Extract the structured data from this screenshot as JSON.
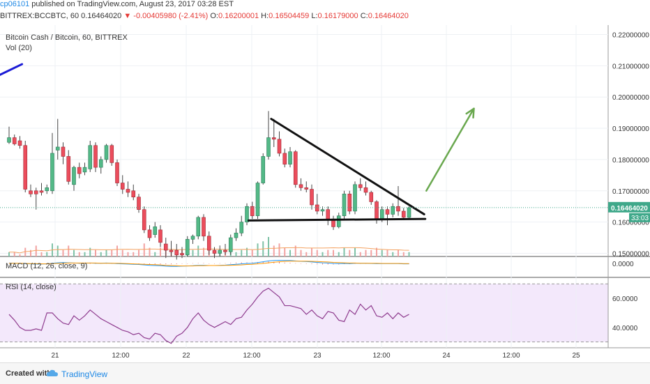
{
  "header": {
    "user": "cp06101",
    "published_text": " published on TradingView.com, August 23, 2017 03:28 EST",
    "symbol": "BITTREX:BCCBTC, 60",
    "price": "0.16464020",
    "change_arrow": "▼",
    "change": "-0.00405980 (-2.41%)",
    "open_label": "O:",
    "open": "0.16200001",
    "high_label": "H:",
    "high": "0.16504459",
    "low_label": "L:",
    "low": "0.16179000",
    "close_label": "C:",
    "close": "0.16464020"
  },
  "chart_data": {
    "type": "candlestick",
    "title": "Bitcoin Cash / Bitcoin, 60, BITTREX",
    "volume_label": "Vol (20)",
    "macd_label": "MACD (12, 26, close, 9)",
    "rsi_label": "RSI (14, close)",
    "price_axis_ticks": [
      "0.22000000",
      "0.21000000",
      "0.20000000",
      "0.19000000",
      "0.18000000",
      "0.17000000",
      "0.16000000",
      "0.15000000"
    ],
    "price_range": [
      0.149,
      0.223
    ],
    "last_price_label": "0.16464020",
    "countdown_label": "33:03",
    "last_price": 0.16464,
    "macd_tick": "0.0000",
    "rsi_ticks": [
      "60.0000",
      "40.0000"
    ],
    "rsi_range": [
      26,
      74
    ],
    "rsi_bands": [
      70,
      30
    ],
    "x_ticks": [
      "21",
      "12:00",
      "22",
      "12:00",
      "23",
      "12:00",
      "24",
      "12:00",
      "25"
    ],
    "bar_spacing": 7.75,
    "candles": [
      [
        0.1855,
        0.1905,
        0.185,
        0.187
      ],
      [
        0.187,
        0.188,
        0.1845,
        0.185
      ],
      [
        0.186,
        0.1875,
        0.1835,
        0.1845
      ],
      [
        0.1845,
        0.186,
        0.1695,
        0.1705
      ],
      [
        0.17,
        0.172,
        0.168,
        0.169
      ],
      [
        0.17,
        0.171,
        0.164,
        0.169
      ],
      [
        0.17,
        0.1725,
        0.1685,
        0.1695
      ],
      [
        0.17,
        0.172,
        0.169,
        0.171
      ],
      [
        0.17,
        0.1885,
        0.169,
        0.182
      ],
      [
        0.183,
        0.193,
        0.18,
        0.184
      ],
      [
        0.184,
        0.1855,
        0.1785,
        0.181
      ],
      [
        0.181,
        0.183,
        0.172,
        0.173
      ],
      [
        0.172,
        0.178,
        0.17,
        0.1775
      ],
      [
        0.1775,
        0.179,
        0.174,
        0.1755
      ],
      [
        0.176,
        0.179,
        0.175,
        0.1775
      ],
      [
        0.177,
        0.186,
        0.176,
        0.1845
      ],
      [
        0.1845,
        0.1855,
        0.176,
        0.1775
      ],
      [
        0.1775,
        0.181,
        0.1755,
        0.18
      ],
      [
        0.18,
        0.185,
        0.179,
        0.1845
      ],
      [
        0.1845,
        0.185,
        0.178,
        0.179
      ],
      [
        0.179,
        0.18,
        0.1715,
        0.1725
      ],
      [
        0.1725,
        0.175,
        0.169,
        0.1705
      ],
      [
        0.1705,
        0.173,
        0.168,
        0.1695
      ],
      [
        0.17,
        0.172,
        0.167,
        0.168
      ],
      [
        0.168,
        0.169,
        0.163,
        0.164
      ],
      [
        0.164,
        0.165,
        0.1565,
        0.1575
      ],
      [
        0.1575,
        0.159,
        0.154,
        0.155
      ],
      [
        0.156,
        0.16,
        0.155,
        0.1585
      ],
      [
        0.1575,
        0.159,
        0.152,
        0.1535
      ],
      [
        0.153,
        0.155,
        0.1485,
        0.151
      ],
      [
        0.151,
        0.154,
        0.149,
        0.1505
      ],
      [
        0.151,
        0.153,
        0.148,
        0.1495
      ],
      [
        0.15,
        0.152,
        0.1485,
        0.1495
      ],
      [
        0.1495,
        0.1555,
        0.149,
        0.1545
      ],
      [
        0.1545,
        0.156,
        0.153,
        0.1555
      ],
      [
        0.1555,
        0.162,
        0.1545,
        0.1615
      ],
      [
        0.1615,
        0.1625,
        0.154,
        0.1555
      ],
      [
        0.1555,
        0.157,
        0.1495,
        0.151
      ],
      [
        0.151,
        0.152,
        0.1485,
        0.15
      ],
      [
        0.15,
        0.1525,
        0.149,
        0.151
      ],
      [
        0.151,
        0.153,
        0.1495,
        0.1505
      ],
      [
        0.1505,
        0.156,
        0.1495,
        0.155
      ],
      [
        0.155,
        0.158,
        0.154,
        0.1565
      ],
      [
        0.1565,
        0.162,
        0.1555,
        0.16
      ],
      [
        0.16,
        0.166,
        0.159,
        0.165
      ],
      [
        0.165,
        0.1665,
        0.161,
        0.162
      ],
      [
        0.162,
        0.173,
        0.161,
        0.1725
      ],
      [
        0.1725,
        0.182,
        0.172,
        0.181
      ],
      [
        0.181,
        0.1955,
        0.18,
        0.187
      ],
      [
        0.187,
        0.193,
        0.184,
        0.1865
      ],
      [
        0.1865,
        0.189,
        0.181,
        0.182
      ],
      [
        0.182,
        0.1835,
        0.1775,
        0.1785
      ],
      [
        0.1785,
        0.184,
        0.1775,
        0.1825
      ],
      [
        0.1825,
        0.183,
        0.171,
        0.172
      ],
      [
        0.172,
        0.174,
        0.17,
        0.171
      ],
      [
        0.171,
        0.173,
        0.1695,
        0.1705
      ],
      [
        0.1705,
        0.172,
        0.164,
        0.1655
      ],
      [
        0.1655,
        0.169,
        0.1625,
        0.1635
      ],
      [
        0.1635,
        0.165,
        0.162,
        0.164
      ],
      [
        0.164,
        0.165,
        0.159,
        0.161
      ],
      [
        0.161,
        0.162,
        0.1575,
        0.1585
      ],
      [
        0.1585,
        0.163,
        0.158,
        0.162
      ],
      [
        0.162,
        0.17,
        0.161,
        0.169
      ],
      [
        0.169,
        0.17,
        0.1625,
        0.1635
      ],
      [
        0.1635,
        0.173,
        0.1625,
        0.172
      ],
      [
        0.172,
        0.174,
        0.17,
        0.171
      ],
      [
        0.171,
        0.173,
        0.1685,
        0.1695
      ],
      [
        0.1695,
        0.17,
        0.1655,
        0.1665
      ],
      [
        0.1665,
        0.167,
        0.1595,
        0.161
      ],
      [
        0.161,
        0.165,
        0.16,
        0.164
      ],
      [
        0.164,
        0.165,
        0.159,
        0.1625
      ],
      [
        0.1625,
        0.166,
        0.1615,
        0.165
      ],
      [
        0.165,
        0.1715,
        0.162,
        0.1635
      ],
      [
        0.1635,
        0.1645,
        0.161,
        0.1615
      ],
      [
        0.1615,
        0.165,
        0.161,
        0.1646
      ]
    ],
    "volume": [
      2,
      2,
      1,
      4,
      3,
      5,
      2,
      2,
      6,
      5,
      3,
      5,
      3,
      2,
      2,
      4,
      3,
      2,
      3,
      3,
      5,
      3,
      2,
      2,
      3,
      6,
      4,
      2,
      4,
      5,
      3,
      2,
      3,
      4,
      3,
      5,
      4,
      3,
      2,
      2,
      2,
      3,
      2,
      3,
      4,
      3,
      6,
      7,
      9,
      5,
      6,
      4,
      3,
      5,
      3,
      2,
      4,
      3,
      2,
      3,
      3,
      2,
      4,
      3,
      4,
      2,
      3,
      3,
      4,
      3,
      3,
      2,
      3,
      2,
      2
    ],
    "macd": [
      0.2,
      0.1,
      0,
      -0.1,
      -0.2,
      -0.3,
      -0.3,
      -0.2,
      0.1,
      0.3,
      0.4,
      0.3,
      0.2,
      0.1,
      0.1,
      0.2,
      0.1,
      0.1,
      0.2,
      0.1,
      -0.1,
      -0.2,
      -0.3,
      -0.4,
      -0.5,
      -0.7,
      -0.9,
      -1,
      -1.1,
      -1.3,
      -1.4,
      -1.4,
      -1.3,
      -1.2,
      -1.1,
      -0.9,
      -0.9,
      -1,
      -1,
      -0.9,
      -0.8,
      -0.6,
      -0.4,
      -0.2,
      0,
      0.1,
      0.4,
      0.8,
      1.2,
      1.4,
      1.5,
      1.4,
      1.4,
      1.2,
      1,
      0.9,
      0.7,
      0.5,
      0.3,
      0.2,
      0,
      -0.1,
      0,
      -0.1,
      0.1,
      0.1,
      0.1,
      0,
      -0.1,
      -0.1,
      -0.1,
      -0.1,
      -0.1,
      -0.2,
      -0.2
    ],
    "macd_signal": [
      0.1,
      0.1,
      0.1,
      0,
      -0.1,
      -0.1,
      -0.2,
      -0.2,
      -0.1,
      0,
      0.1,
      0.2,
      0.2,
      0.2,
      0.2,
      0.2,
      0.2,
      0.1,
      0.1,
      0.1,
      0.1,
      0,
      -0.1,
      -0.2,
      -0.3,
      -0.4,
      -0.5,
      -0.6,
      -0.7,
      -0.9,
      -1,
      -1.1,
      -1.2,
      -1.2,
      -1.2,
      -1.1,
      -1.1,
      -1,
      -1,
      -1,
      -0.9,
      -0.9,
      -0.8,
      -0.7,
      -0.5,
      -0.4,
      -0.2,
      0,
      0.3,
      0.6,
      0.8,
      1,
      1.1,
      1.1,
      1.1,
      1.1,
      1,
      0.9,
      0.8,
      0.7,
      0.5,
      0.4,
      0.3,
      0.2,
      0.2,
      0.1,
      0.1,
      0.1,
      0.1,
      0,
      0,
      0,
      0,
      -0.1,
      -0.1
    ],
    "rsi": [
      49,
      45,
      40,
      38,
      38,
      39,
      38,
      50,
      50,
      46,
      43,
      42,
      48,
      45,
      48,
      52,
      49,
      46,
      44,
      42,
      40,
      38,
      37,
      35,
      36,
      33,
      32,
      36,
      35,
      31,
      29,
      34,
      36,
      40,
      46,
      50,
      45,
      42,
      40,
      42,
      44,
      42,
      46,
      47,
      52,
      56,
      61,
      65,
      67,
      64,
      61,
      55,
      55,
      54,
      53,
      49,
      52,
      48,
      46,
      51,
      50,
      45,
      44,
      52,
      49,
      56,
      52,
      55,
      48,
      47,
      50,
      46,
      50,
      47,
      49
    ],
    "drawings": {
      "triangle_upper": [
        [
          48.5,
          0.193
        ],
        [
          76.8,
          0.1625
        ]
      ],
      "triangle_lower": [
        [
          44.3,
          0.1605
        ],
        [
          77.0,
          0.161
        ]
      ],
      "target_arrow": [
        [
          77.2,
          0.17
        ],
        [
          86.0,
          0.1963
        ]
      ],
      "blue_line": [
        [
          -1.8,
          0.207
        ],
        [
          2.4,
          0.2105
        ]
      ]
    }
  },
  "footer": {
    "created_with": "Created with",
    "brand": "TradingView"
  }
}
